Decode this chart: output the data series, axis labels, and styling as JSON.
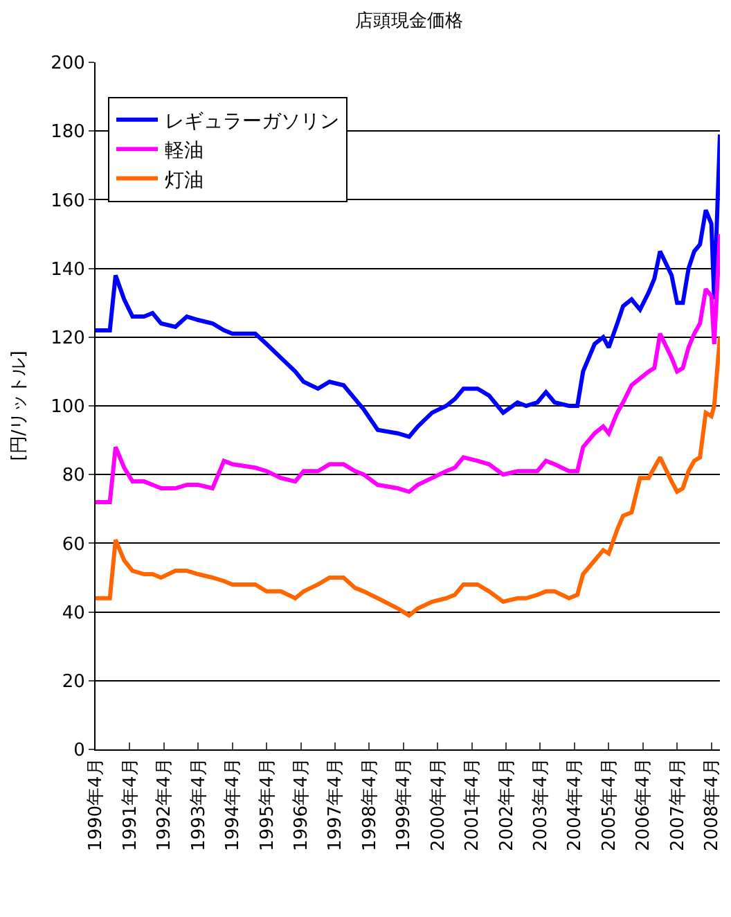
{
  "chart_data": {
    "type": "line",
    "title": "店頭現金価格",
    "ylabel": "[円/リットル]",
    "x": [
      "1990-04",
      "1990-09",
      "1990-11",
      "1991-02",
      "1991-05",
      "1991-09",
      "1991-12",
      "1992-03",
      "1992-08",
      "1992-12",
      "1993-04",
      "1993-09",
      "1994-01",
      "1994-04",
      "1994-12",
      "1995-04",
      "1995-09",
      "1996-02",
      "1996-05",
      "1996-10",
      "1997-02",
      "1997-07",
      "1997-11",
      "1998-02",
      "1998-07",
      "1999-02",
      "1999-06",
      "1999-09",
      "2000-02",
      "2000-07",
      "2000-10",
      "2001-01",
      "2001-06",
      "2001-10",
      "2002-03",
      "2002-08",
      "2002-11",
      "2003-03",
      "2003-06",
      "2003-09",
      "2004-02",
      "2004-05",
      "2004-07",
      "2004-11",
      "2005-02",
      "2005-04",
      "2005-07",
      "2005-09",
      "2005-12",
      "2006-03",
      "2006-06",
      "2006-08",
      "2006-10",
      "2007-02",
      "2007-04",
      "2007-06",
      "2007-08",
      "2007-10",
      "2007-12",
      "2008-02",
      "2008-04",
      "2008-05",
      "2008-07"
    ],
    "series": [
      {
        "name": "レギュラーガソリン",
        "color": "#0000ff",
        "values": [
          122,
          122,
          138,
          131,
          126,
          126,
          127,
          124,
          123,
          126,
          125,
          124,
          122,
          121,
          121,
          118,
          114,
          110,
          107,
          105,
          107,
          106,
          102,
          99,
          93,
          92,
          91,
          94,
          98,
          100,
          102,
          105,
          105,
          103,
          98,
          101,
          100,
          101,
          104,
          101,
          100,
          100,
          110,
          118,
          120,
          117,
          124,
          129,
          131,
          128,
          133,
          137,
          145,
          138,
          130,
          130,
          140,
          145,
          147,
          157,
          153,
          131,
          179
        ]
      },
      {
        "name": "軽油",
        "color": "#ff00ff",
        "values": [
          72,
          72,
          88,
          82,
          78,
          78,
          77,
          76,
          76,
          77,
          77,
          76,
          84,
          83,
          82,
          81,
          79,
          78,
          81,
          81,
          83,
          83,
          81,
          80,
          77,
          76,
          75,
          77,
          79,
          81,
          82,
          85,
          84,
          83,
          80,
          81,
          81,
          81,
          84,
          83,
          81,
          81,
          88,
          92,
          94,
          92,
          98,
          101,
          106,
          108,
          110,
          111,
          121,
          114,
          110,
          111,
          117,
          121,
          124,
          134,
          132,
          118,
          150
        ]
      },
      {
        "name": "灯油",
        "color": "#ff6600",
        "values": [
          44,
          44,
          61,
          55,
          52,
          51,
          51,
          50,
          52,
          52,
          51,
          50,
          49,
          48,
          48,
          46,
          46,
          44,
          46,
          48,
          50,
          50,
          47,
          46,
          44,
          41,
          39,
          41,
          43,
          44,
          45,
          48,
          48,
          46,
          43,
          44,
          44,
          45,
          46,
          46,
          44,
          45,
          51,
          55,
          58,
          57,
          64,
          68,
          69,
          79,
          79,
          82,
          85,
          78,
          75,
          76,
          81,
          84,
          85,
          98,
          97,
          100,
          120
        ]
      }
    ],
    "xlim": [
      "1990-04",
      "2008-07"
    ],
    "xticks": [
      {
        "value": "1990-04",
        "label": "1990年4月"
      },
      {
        "value": "1991-04",
        "label": "1991年4月"
      },
      {
        "value": "1992-04",
        "label": "1992年4月"
      },
      {
        "value": "1993-04",
        "label": "1993年4月"
      },
      {
        "value": "1994-04",
        "label": "1994年4月"
      },
      {
        "value": "1995-04",
        "label": "1995年4月"
      },
      {
        "value": "1996-04",
        "label": "1996年4月"
      },
      {
        "value": "1997-04",
        "label": "1997年4月"
      },
      {
        "value": "1998-04",
        "label": "1998年4月"
      },
      {
        "value": "1999-04",
        "label": "1999年4月"
      },
      {
        "value": "2000-04",
        "label": "2000年4月"
      },
      {
        "value": "2001-04",
        "label": "2001年4月"
      },
      {
        "value": "2002-04",
        "label": "2002年4月"
      },
      {
        "value": "2003-04",
        "label": "2003年4月"
      },
      {
        "value": "2004-04",
        "label": "2004年4月"
      },
      {
        "value": "2005-04",
        "label": "2005年4月"
      },
      {
        "value": "2006-04",
        "label": "2006年4月"
      },
      {
        "value": "2007-04",
        "label": "2007年4月"
      },
      {
        "value": "2008-04",
        "label": "2008年4月"
      }
    ],
    "ylim": [
      0,
      200
    ],
    "yticks": [
      0,
      20,
      40,
      60,
      80,
      100,
      120,
      140,
      160,
      180,
      200
    ],
    "grid": "y",
    "legend": "top left",
    "marker": "none",
    "line_style": "solid"
  }
}
